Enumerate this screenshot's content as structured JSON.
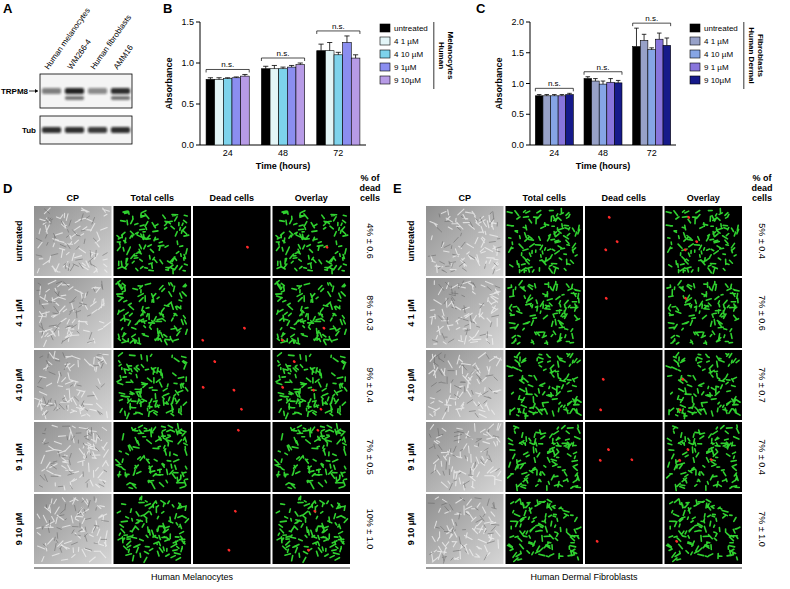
{
  "panel_letters": [
    "A",
    "B",
    "C",
    "D",
    "E"
  ],
  "blot": {
    "lanes": [
      "Human melanocytes",
      "WM266-4",
      "Human fibroblasts",
      "AMM16"
    ],
    "rows": [
      "TRPM8",
      "Tub"
    ]
  },
  "chart_data": [
    {
      "type": "bar",
      "subtitle": "Human Melanocytes",
      "x_label": "Time (hours)",
      "y_label": "Absorbance",
      "categories": [
        "24",
        "48",
        "72"
      ],
      "series": [
        {
          "name": "untreated",
          "color": "#000000",
          "values": [
            0.8,
            0.93,
            1.15
          ],
          "errors": [
            0.02,
            0.03,
            0.08
          ]
        },
        {
          "name": "4 1 µM",
          "color": "#e3f5f7",
          "values": [
            0.8,
            0.93,
            1.15
          ],
          "errors": [
            0.02,
            0.04,
            0.1
          ]
        },
        {
          "name": "4 10 µM",
          "color": "#7dd3ec",
          "values": [
            0.81,
            0.93,
            1.1
          ],
          "errors": [
            0.01,
            0.02,
            0.03
          ]
        },
        {
          "name": "9 1µM",
          "color": "#8b8ef0",
          "values": [
            0.82,
            0.95,
            1.25
          ],
          "errors": [
            0.01,
            0.02,
            0.08
          ]
        },
        {
          "name": "9 10µM",
          "color": "#b79be6",
          "values": [
            0.84,
            0.98,
            1.06
          ],
          "errors": [
            0.02,
            0.02,
            0.04
          ]
        }
      ],
      "ylim": [
        0,
        1.5
      ],
      "yticks": [
        {
          "value": 0,
          "label": "0.0"
        },
        {
          "value": 0.5,
          "label": "0.5"
        },
        {
          "value": 1,
          "label": "1.0"
        },
        {
          "value": 1.5,
          "label": "1.5"
        }
      ],
      "annotations": [
        "n.s.",
        "n.s.",
        "n.s."
      ],
      "legend": "right",
      "grid": false
    },
    {
      "type": "bar",
      "subtitle": "Human Dermal Fibroblasts",
      "x_label": "Time (hours)",
      "y_label": "Absorbance",
      "categories": [
        "24",
        "48",
        "72"
      ],
      "series": [
        {
          "name": "untreated",
          "color": "#000000",
          "values": [
            0.8,
            1.08,
            1.6
          ],
          "errors": [
            0.02,
            0.03,
            0.3
          ]
        },
        {
          "name": "4 1 µM",
          "color": "#97a1c8",
          "values": [
            0.8,
            1.04,
            1.7
          ],
          "errors": [
            0.02,
            0.04,
            0.1
          ]
        },
        {
          "name": "4 10 µM",
          "color": "#86a5e6",
          "values": [
            0.8,
            0.99,
            1.55
          ],
          "errors": [
            0.02,
            0.05,
            0.03
          ]
        },
        {
          "name": "9 1 µM",
          "color": "#8875dc",
          "values": [
            0.8,
            1.02,
            1.72
          ],
          "errors": [
            0.02,
            0.06,
            0.1
          ]
        },
        {
          "name": "9 10µM",
          "color": "#161a8a",
          "values": [
            0.82,
            1.01,
            1.62
          ],
          "errors": [
            0.02,
            0.04,
            0.12
          ]
        }
      ],
      "ylim": [
        0,
        2
      ],
      "yticks": [
        {
          "value": 0,
          "label": "0.0"
        },
        {
          "value": 0.5,
          "label": "0.5"
        },
        {
          "value": 1,
          "label": "1.0"
        },
        {
          "value": 1.5,
          "label": "1.5"
        },
        {
          "value": 2,
          "label": "2.0"
        }
      ],
      "annotations": [
        "n.s.",
        "n.s.",
        "n.s."
      ],
      "legend": "right",
      "grid": false
    }
  ],
  "micrographs": [
    {
      "columns": [
        "CP",
        "Total cells",
        "Dead cells",
        "Overlay"
      ],
      "value_column": "% of dead cells",
      "rows": [
        {
          "label": "untreated",
          "value": "4% ± 0.6"
        },
        {
          "label": "4 1 µM",
          "value": "8% ± 0.3"
        },
        {
          "label": "4 10 µM",
          "value": "9% ± 0.4"
        },
        {
          "label": "9 1 µM",
          "value": "7% ± 0.5"
        },
        {
          "label": "9 10 µM",
          "value": "10% ± 1.0"
        }
      ],
      "footer": "Human Melanocytes"
    },
    {
      "columns": [
        "CP",
        "Total cells",
        "Dead cells",
        "Overlay"
      ],
      "value_column": "% of dead cells",
      "rows": [
        {
          "label": "untreated",
          "value": "5% ± 0.4"
        },
        {
          "label": "4 1 µM",
          "value": "7% ± 0.6"
        },
        {
          "label": "4 10 µM",
          "value": "7% ± 0.7"
        },
        {
          "label": "9 1 µM",
          "value": "7% ± 0.4"
        },
        {
          "label": "9 10 µM",
          "value": "7% ± 1.0"
        }
      ],
      "footer": "Human Dermal Fibroblasts"
    }
  ]
}
